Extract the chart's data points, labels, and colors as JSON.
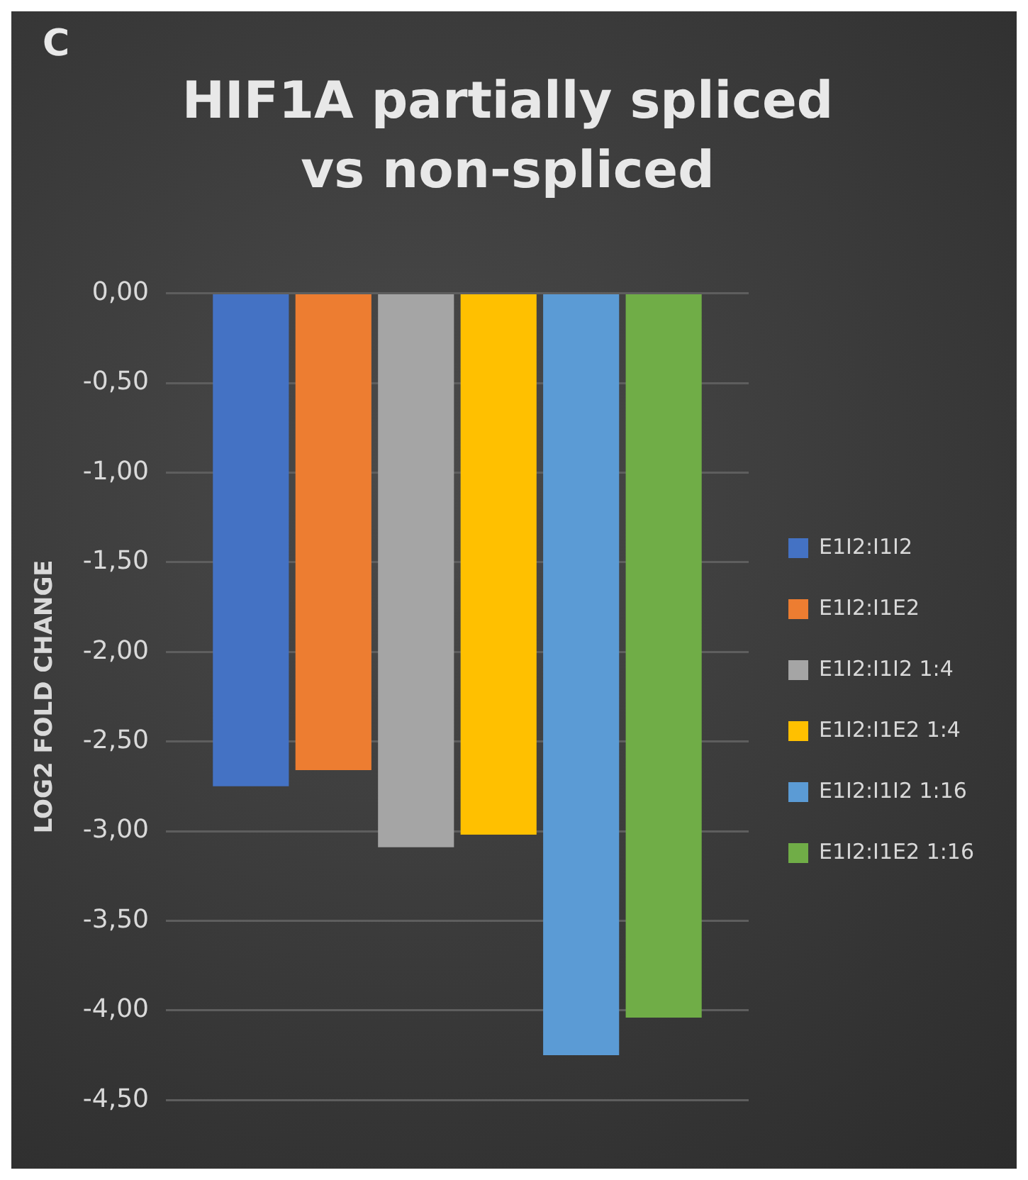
{
  "chart_data": {
    "type": "bar",
    "title": "HIF1A partially spliced vs non-spliced",
    "ylabel": "LOG2 FOLD CHANGE",
    "annotations": [
      "C"
    ],
    "categories": [
      null
    ],
    "series": [
      {
        "name": "E1I2:I1I2",
        "color": "#4472c4",
        "values": [
          -2.75
        ]
      },
      {
        "name": "E1I2:I1E2",
        "color": "#ed7d31",
        "values": [
          -2.66
        ]
      },
      {
        "name": "E1I2:I1I2 1:4",
        "color": "#a5a5a5",
        "values": [
          -3.09
        ]
      },
      {
        "name": "E1I2:I1E2 1:4",
        "color": "#ffc000",
        "values": [
          -3.02
        ]
      },
      {
        "name": "E1I2:I1I2 1:16",
        "color": "#5b9bd5",
        "values": [
          -4.25
        ]
      },
      {
        "name": "E1I2:I1E2 1:16",
        "color": "#70ad47",
        "values": [
          -4.04
        ]
      }
    ],
    "ylim": [
      -4.5,
      0
    ],
    "yticks": [
      {
        "value": 0,
        "label": "0,00"
      },
      {
        "value": -0.5,
        "label": "-0,50"
      },
      {
        "value": -1,
        "label": "-1,00"
      },
      {
        "value": -1.5,
        "label": "-1,50"
      },
      {
        "value": -2,
        "label": "-2,00"
      },
      {
        "value": -2.5,
        "label": "-2,50"
      },
      {
        "value": -3,
        "label": "-3,00"
      },
      {
        "value": -3.5,
        "label": "-3,50"
      },
      {
        "value": -4,
        "label": "-4,00"
      },
      {
        "value": -4.5,
        "label": "-4,50"
      }
    ],
    "grid": "y",
    "legend": "right"
  }
}
